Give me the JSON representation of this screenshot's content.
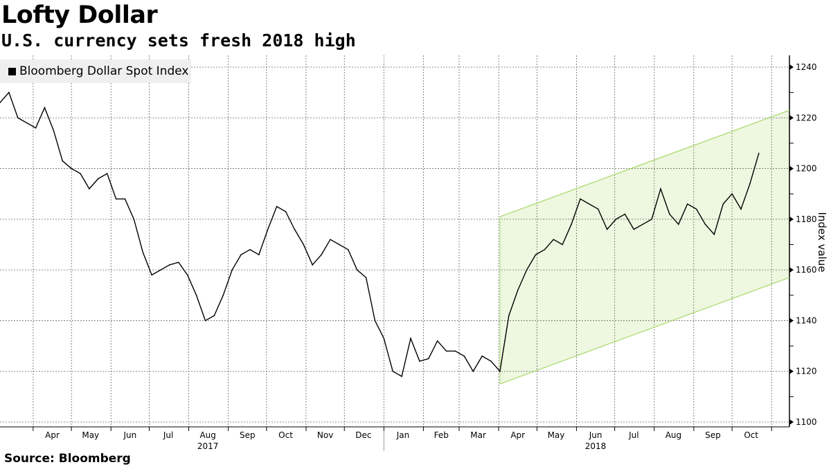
{
  "title": "Lofty Dollar",
  "subtitle": "U.S. currency sets fresh 2018 high",
  "source": "Source: Bloomberg",
  "chart_data": {
    "type": "line",
    "legend": {
      "placement": "top-left",
      "entries": [
        "Bloomberg Dollar Spot Index"
      ]
    },
    "ylabel": "Index value",
    "ylim": [
      1100,
      1240
    ],
    "yticks": [
      1100,
      1120,
      1140,
      1160,
      1180,
      1200,
      1220,
      1240
    ],
    "xlim": [
      "2017-03-06",
      "2018-11-15"
    ],
    "grid": true,
    "x_month_labels": [
      {
        "label": "Apr",
        "date": "2017-04-16"
      },
      {
        "label": "May",
        "date": "2017-05-16"
      },
      {
        "label": "Jun",
        "date": "2017-06-16"
      },
      {
        "label": "Jul",
        "date": "2017-07-16"
      },
      {
        "label": "Aug",
        "date": "2017-08-16"
      },
      {
        "label": "Sep",
        "date": "2017-09-16"
      },
      {
        "label": "Oct",
        "date": "2017-10-16"
      },
      {
        "label": "Nov",
        "date": "2017-11-16"
      },
      {
        "label": "Dec",
        "date": "2017-12-16"
      },
      {
        "label": "Jan",
        "date": "2018-01-16"
      },
      {
        "label": "Feb",
        "date": "2018-02-15"
      },
      {
        "label": "Mar",
        "date": "2018-03-16"
      },
      {
        "label": "Apr",
        "date": "2018-04-16"
      },
      {
        "label": "May",
        "date": "2018-05-16"
      },
      {
        "label": "Jun",
        "date": "2018-06-16"
      },
      {
        "label": "Jul",
        "date": "2018-07-16"
      },
      {
        "label": "Aug",
        "date": "2018-08-16"
      },
      {
        "label": "Sep",
        "date": "2018-09-16"
      },
      {
        "label": "Oct",
        "date": "2018-10-16"
      }
    ],
    "x_year_labels": [
      {
        "label": "2017",
        "date": "2017-08-16"
      },
      {
        "label": "2018",
        "date": "2018-06-16"
      }
    ],
    "series": [
      {
        "color": "#000000",
        "dates": [
          "2017-03-06",
          "2017-03-13",
          "2017-03-20",
          "2017-03-27",
          "2017-04-03",
          "2017-04-10",
          "2017-04-17",
          "2017-04-24",
          "2017-05-01",
          "2017-05-08",
          "2017-05-15",
          "2017-05-22",
          "2017-05-29",
          "2017-06-05",
          "2017-06-12",
          "2017-06-19",
          "2017-06-26",
          "2017-07-03",
          "2017-07-10",
          "2017-07-17",
          "2017-07-24",
          "2017-07-31",
          "2017-08-07",
          "2017-08-14",
          "2017-08-21",
          "2017-08-28",
          "2017-09-04",
          "2017-09-11",
          "2017-09-18",
          "2017-09-25",
          "2017-10-02",
          "2017-10-09",
          "2017-10-16",
          "2017-10-23",
          "2017-10-30",
          "2017-11-06",
          "2017-11-13",
          "2017-11-20",
          "2017-11-27",
          "2017-12-04",
          "2017-12-11",
          "2017-12-18",
          "2017-12-25",
          "2018-01-01",
          "2018-01-08",
          "2018-01-15",
          "2018-01-22",
          "2018-01-29",
          "2018-02-05",
          "2018-02-12",
          "2018-02-19",
          "2018-02-26",
          "2018-03-05",
          "2018-03-12",
          "2018-03-19",
          "2018-03-26",
          "2018-04-02",
          "2018-04-09",
          "2018-04-16",
          "2018-04-23",
          "2018-04-30",
          "2018-05-07",
          "2018-05-14",
          "2018-05-21",
          "2018-05-28",
          "2018-06-04",
          "2018-06-11",
          "2018-06-18",
          "2018-06-25",
          "2018-07-02",
          "2018-07-09",
          "2018-07-16",
          "2018-07-23",
          "2018-07-30",
          "2018-08-06",
          "2018-08-13",
          "2018-08-20",
          "2018-08-27",
          "2018-09-03",
          "2018-09-10",
          "2018-09-17",
          "2018-09-24",
          "2018-10-01",
          "2018-10-08",
          "2018-10-15",
          "2018-10-22"
        ],
        "values": [
          1226,
          1230,
          1220,
          1218,
          1216,
          1224,
          1215,
          1203,
          1200,
          1198,
          1192,
          1196,
          1198,
          1188,
          1188,
          1180,
          1167,
          1158,
          1160,
          1162,
          1163,
          1158,
          1150,
          1140,
          1142,
          1150,
          1160,
          1166,
          1168,
          1166,
          1176,
          1185,
          1183,
          1176,
          1170,
          1162,
          1166,
          1172,
          1170,
          1168,
          1160,
          1157,
          1140,
          1133,
          1120,
          1118,
          1133,
          1124,
          1125,
          1132,
          1128,
          1128,
          1126,
          1120,
          1126,
          1124,
          1120,
          1142,
          1152,
          1160,
          1166,
          1168,
          1172,
          1170,
          1178,
          1188,
          1186,
          1184,
          1176,
          1180,
          1182,
          1176,
          1178,
          1180,
          1192,
          1182,
          1178,
          1186,
          1184,
          1178,
          1174,
          1186,
          1190,
          1184,
          1194,
          1206
        ]
      }
    ],
    "channel": {
      "fill": "#eef7e0",
      "line_color": "#a6d96a",
      "start": "2018-04-02",
      "end": "2018-11-15",
      "upper": [
        1181,
        1223
      ],
      "lower": [
        1115,
        1157
      ]
    }
  }
}
